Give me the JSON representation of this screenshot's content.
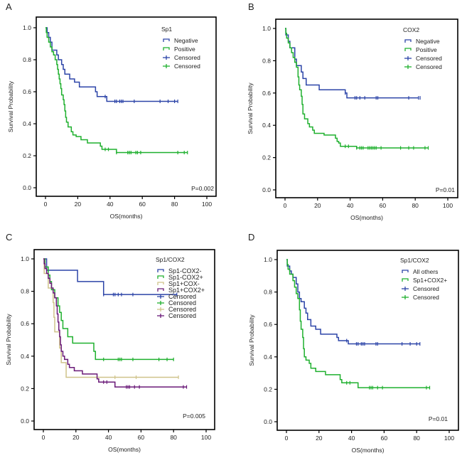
{
  "chart_data": [
    {
      "panel": "A",
      "type": "line",
      "subtype": "kaplan-meier",
      "xlabel": "OS(months)",
      "ylabel": "Survival Probability",
      "xlim": [
        0,
        100
      ],
      "ylim": [
        0,
        1
      ],
      "xticks": [
        "0",
        "20",
        "40",
        "60",
        "80",
        "100"
      ],
      "yticks": [
        "0.0",
        "0.2",
        "0.4",
        "0.6",
        "0.8",
        "1.0"
      ],
      "legend_title": "Sp1",
      "legend_position": "top-right",
      "annotation": "P=0.002",
      "series": [
        {
          "name": "Negative",
          "color": "#2c44a8",
          "steps": [
            [
              0,
              1.0
            ],
            [
              1,
              0.97
            ],
            [
              2,
              0.94
            ],
            [
              3,
              0.91
            ],
            [
              4,
              0.86
            ],
            [
              7,
              0.83
            ],
            [
              8,
              0.8
            ],
            [
              10,
              0.77
            ],
            [
              11,
              0.74
            ],
            [
              12,
              0.71
            ],
            [
              15,
              0.68
            ],
            [
              18,
              0.66
            ],
            [
              21,
              0.63
            ],
            [
              31,
              0.6
            ],
            [
              32,
              0.57
            ],
            [
              38,
              0.54
            ],
            [
              82,
              0.54
            ]
          ],
          "censored": [
            37,
            43,
            44,
            46,
            47,
            48,
            55,
            71,
            76,
            80,
            82
          ]
        },
        {
          "name": "Positive",
          "color": "#1fb02e",
          "steps": [
            [
              0,
              1.0
            ],
            [
              0.5,
              0.97
            ],
            [
              1,
              0.94
            ],
            [
              2,
              0.91
            ],
            [
              3,
              0.88
            ],
            [
              4,
              0.85
            ],
            [
              5,
              0.83
            ],
            [
              6,
              0.8
            ],
            [
              7,
              0.77
            ],
            [
              7.5,
              0.74
            ],
            [
              8,
              0.71
            ],
            [
              8.5,
              0.68
            ],
            [
              9,
              0.65
            ],
            [
              9.5,
              0.62
            ],
            [
              10,
              0.58
            ],
            [
              11,
              0.55
            ],
            [
              11.5,
              0.52
            ],
            [
              12,
              0.48
            ],
            [
              12.5,
              0.44
            ],
            [
              13,
              0.41
            ],
            [
              14,
              0.38
            ],
            [
              16,
              0.35
            ],
            [
              17,
              0.33
            ],
            [
              19,
              0.32
            ],
            [
              22,
              0.3
            ],
            [
              26,
              0.28
            ],
            [
              34,
              0.26
            ],
            [
              35,
              0.24
            ],
            [
              44,
              0.22
            ],
            [
              88,
              0.22
            ]
          ],
          "censored": [
            37,
            39,
            44,
            51,
            52,
            53,
            56,
            57,
            59,
            82,
            86,
            88
          ]
        }
      ],
      "legend_entries": [
        "Negative",
        "Positive",
        "Censored",
        "Censored"
      ]
    },
    {
      "panel": "B",
      "type": "line",
      "subtype": "kaplan-meier",
      "xlabel": "OS(months)",
      "ylabel": "Survival Probability",
      "xlim": [
        0,
        100
      ],
      "ylim": [
        0,
        1
      ],
      "xticks": [
        "0",
        "20",
        "40",
        "60",
        "80",
        "100"
      ],
      "yticks": [
        "0.0",
        "0.2",
        "0.4",
        "0.6",
        "0.8",
        "1.0"
      ],
      "legend_title": "COX2",
      "legend_position": "top-right",
      "annotation": "P=0.01",
      "series": [
        {
          "name": "Negative",
          "color": "#2c44a8",
          "steps": [
            [
              0,
              1.0
            ],
            [
              0.5,
              0.96
            ],
            [
              2,
              0.92
            ],
            [
              3,
              0.88
            ],
            [
              6,
              0.81
            ],
            [
              7,
              0.77
            ],
            [
              10,
              0.73
            ],
            [
              11,
              0.69
            ],
            [
              13,
              0.65
            ],
            [
              21,
              0.62
            ],
            [
              37,
              0.6
            ],
            [
              38,
              0.57
            ],
            [
              82,
              0.57
            ]
          ],
          "censored": [
            37,
            43,
            44,
            46,
            49,
            56,
            57,
            76,
            82,
            83
          ]
        },
        {
          "name": "Positive",
          "color": "#1fb02e",
          "steps": [
            [
              0,
              1.0
            ],
            [
              0.5,
              0.97
            ],
            [
              1,
              0.94
            ],
            [
              2,
              0.91
            ],
            [
              3,
              0.88
            ],
            [
              4,
              0.85
            ],
            [
              5,
              0.82
            ],
            [
              6,
              0.79
            ],
            [
              7,
              0.76
            ],
            [
              8,
              0.7
            ],
            [
              8.5,
              0.65
            ],
            [
              9,
              0.62
            ],
            [
              10,
              0.58
            ],
            [
              10.5,
              0.53
            ],
            [
              11,
              0.47
            ],
            [
              12,
              0.44
            ],
            [
              14,
              0.41
            ],
            [
              15,
              0.39
            ],
            [
              17,
              0.37
            ],
            [
              18,
              0.35
            ],
            [
              24,
              0.34
            ],
            [
              31,
              0.32
            ],
            [
              32,
              0.3
            ],
            [
              33,
              0.29
            ],
            [
              34,
              0.27
            ],
            [
              44,
              0.26
            ],
            [
              88,
              0.26
            ]
          ],
          "censored": [
            37,
            39,
            44,
            46,
            47,
            48,
            51,
            52,
            53,
            54,
            55,
            56,
            59,
            71,
            76,
            79,
            86,
            88
          ]
        }
      ],
      "legend_entries": [
        "Negative",
        "Positive",
        "Censored",
        "Censored"
      ]
    },
    {
      "panel": "C",
      "type": "line",
      "subtype": "kaplan-meier",
      "xlabel": "OS(months)",
      "ylabel": "Survival Probability",
      "xlim": [
        0,
        100
      ],
      "ylim": [
        0,
        1
      ],
      "xticks": [
        "0",
        "20",
        "40",
        "60",
        "80",
        "100"
      ],
      "yticks": [
        "0.0",
        "0.2",
        "0.4",
        "0.6",
        "0.8",
        "1.0"
      ],
      "legend_title": "Sp1/COX2",
      "legend_position": "top-right",
      "annotation": "P=0.005",
      "series": [
        {
          "name": "Sp1-COX2-",
          "color": "#2c44a8",
          "steps": [
            [
              0,
              1.0
            ],
            [
              2,
              0.93
            ],
            [
              21,
              0.86
            ],
            [
              37,
              0.78
            ],
            [
              82,
              0.78
            ]
          ],
          "censored": [
            37,
            43,
            44,
            46,
            48,
            55,
            82
          ]
        },
        {
          "name": "Sp1-COX2+",
          "color": "#1fb02e",
          "steps": [
            [
              0,
              1.0
            ],
            [
              1,
              0.95
            ],
            [
              3,
              0.9
            ],
            [
              4,
              0.86
            ],
            [
              5,
              0.81
            ],
            [
              7,
              0.76
            ],
            [
              9,
              0.71
            ],
            [
              10,
              0.67
            ],
            [
              11,
              0.62
            ],
            [
              12,
              0.57
            ],
            [
              15,
              0.52
            ],
            [
              18,
              0.48
            ],
            [
              31,
              0.43
            ],
            [
              32,
              0.38
            ],
            [
              80,
              0.38
            ]
          ],
          "censored": [
            37,
            46,
            47,
            48,
            55,
            71,
            76,
            80
          ]
        },
        {
          "name": "Sp1+COX-",
          "color": "#cfc38a",
          "steps": [
            [
              0,
              1.0
            ],
            [
              0.5,
              0.91
            ],
            [
              3,
              0.82
            ],
            [
              6,
              0.73
            ],
            [
              6.5,
              0.64
            ],
            [
              7,
              0.55
            ],
            [
              10,
              0.45
            ],
            [
              11,
              0.36
            ],
            [
              14,
              0.27
            ],
            [
              83,
              0.27
            ]
          ],
          "censored": [
            44,
            57,
            83
          ]
        },
        {
          "name": "Sp1+COX2+",
          "color": "#6a1a78",
          "steps": [
            [
              0,
              1.0
            ],
            [
              0.5,
              0.97
            ],
            [
              1,
              0.94
            ],
            [
              2,
              0.91
            ],
            [
              3,
              0.88
            ],
            [
              4,
              0.85
            ],
            [
              5,
              0.82
            ],
            [
              6,
              0.79
            ],
            [
              7,
              0.76
            ],
            [
              8,
              0.71
            ],
            [
              8.5,
              0.66
            ],
            [
              9,
              0.61
            ],
            [
              9.5,
              0.56
            ],
            [
              10,
              0.52
            ],
            [
              10.5,
              0.47
            ],
            [
              11,
              0.43
            ],
            [
              12,
              0.4
            ],
            [
              13,
              0.38
            ],
            [
              15,
              0.35
            ],
            [
              16,
              0.33
            ],
            [
              19,
              0.31
            ],
            [
              24,
              0.29
            ],
            [
              33,
              0.26
            ],
            [
              34,
              0.24
            ],
            [
              44,
              0.21
            ],
            [
              88,
              0.21
            ]
          ],
          "censored": [
            37,
            39,
            51,
            52,
            53,
            56,
            59,
            86,
            88
          ]
        }
      ],
      "legend_entries": [
        "Sp1-COX2-",
        "Sp1-COX2+",
        "Sp1+COX-",
        "Sp1+COX2+",
        "Censored",
        "Censored",
        "Censored",
        "Censored"
      ]
    },
    {
      "panel": "D",
      "type": "line",
      "subtype": "kaplan-meier",
      "xlabel": "OS(months)",
      "ylabel": "Survival Probability",
      "xlim": [
        0,
        100
      ],
      "ylim": [
        0,
        1
      ],
      "xticks": [
        "0",
        "20",
        "40",
        "60",
        "80",
        "100"
      ],
      "yticks": [
        "0.0",
        "0.2",
        "0.4",
        "0.6",
        "0.8",
        "1.0"
      ],
      "legend_title": "Sp1/COX2",
      "legend_position": "top-right",
      "annotation": "P=0.01",
      "series": [
        {
          "name": "All others",
          "color": "#2c44a8",
          "steps": [
            [
              0,
              1.0
            ],
            [
              0.5,
              0.96
            ],
            [
              2,
              0.93
            ],
            [
              3,
              0.91
            ],
            [
              4,
              0.89
            ],
            [
              6,
              0.85
            ],
            [
              7,
              0.8
            ],
            [
              8,
              0.76
            ],
            [
              9,
              0.74
            ],
            [
              11,
              0.7
            ],
            [
              12,
              0.67
            ],
            [
              13,
              0.63
            ],
            [
              15,
              0.59
            ],
            [
              18,
              0.57
            ],
            [
              21,
              0.54
            ],
            [
              31,
              0.52
            ],
            [
              32,
              0.5
            ],
            [
              38,
              0.48
            ],
            [
              82,
              0.48
            ]
          ],
          "censored": [
            37,
            43,
            44,
            46,
            47,
            48,
            55,
            56,
            71,
            76,
            80,
            82
          ]
        },
        {
          "name": "Sp1+COX2+",
          "color": "#1fb02e",
          "steps": [
            [
              0,
              1.0
            ],
            [
              0.5,
              0.97
            ],
            [
              1,
              0.94
            ],
            [
              2,
              0.91
            ],
            [
              4,
              0.87
            ],
            [
              5,
              0.83
            ],
            [
              6,
              0.79
            ],
            [
              7,
              0.76
            ],
            [
              8,
              0.69
            ],
            [
              8.5,
              0.62
            ],
            [
              9,
              0.57
            ],
            [
              10,
              0.52
            ],
            [
              10.5,
              0.45
            ],
            [
              11,
              0.4
            ],
            [
              12,
              0.38
            ],
            [
              14,
              0.36
            ],
            [
              15,
              0.33
            ],
            [
              18,
              0.31
            ],
            [
              24,
              0.29
            ],
            [
              33,
              0.26
            ],
            [
              34,
              0.24
            ],
            [
              44,
              0.21
            ],
            [
              88,
              0.21
            ]
          ],
          "censored": [
            37,
            39,
            51,
            52,
            53,
            56,
            59,
            86,
            88
          ]
        }
      ],
      "legend_entries": [
        "All others",
        "Sp1+COX2+",
        "Censored",
        "Censored"
      ]
    }
  ]
}
